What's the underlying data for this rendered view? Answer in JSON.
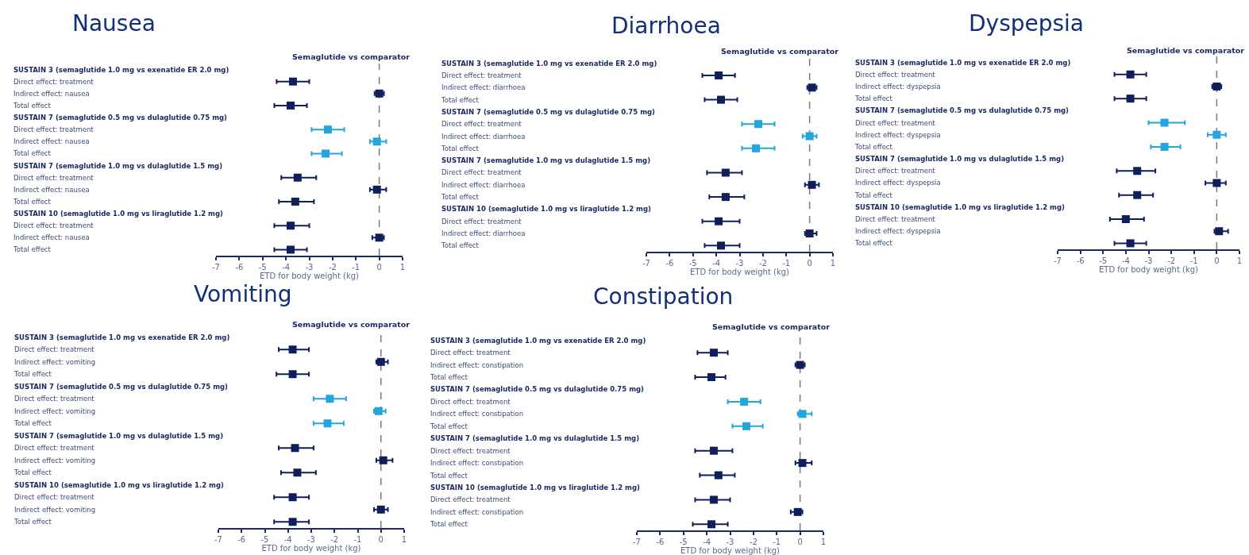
{
  "chart_data": [
    {
      "type": "scatter",
      "title": "Nausea",
      "annotations": [
        "Semaglutide vs comparator"
      ],
      "xlabel": "ETD for body weight (kg)",
      "orientation": "horizontal",
      "marker": "square",
      "categories": [
        "SUSTAIN 3 (semaglutide 1.0 mg vs exenatide ER 2.0 mg)",
        "Direct effect: treatment",
        "Indirect effect: nausea",
        "Total effect",
        "SUSTAIN 7 (semaglutide 0.5 mg vs dulaglutide 0.75 mg)",
        "Direct effect: treatment",
        "Indirect effect: nausea",
        "Total effect",
        "SUSTAIN 7 (semaglutide 1.0 mg vs dulaglutide 1.5 mg)",
        "Direct effect: treatment",
        "Indirect effect: nausea",
        "Total effect",
        "SUSTAIN 10 (semaglutide 1.0 mg vs liraglutide 1.2 mg)",
        "Direct effect: treatment",
        "Indirect effect: nausea",
        "Total effect"
      ],
      "series": [
        {
          "color": "#0e1f5c",
          "values": [
            null,
            -3.7,
            0.0,
            -3.8,
            null,
            null,
            null,
            null,
            null,
            -3.5,
            -0.1,
            -3.6,
            null,
            -3.8,
            0.0,
            -3.8
          ],
          "errors": [
            null,
            [
              -4.4,
              -3.0
            ],
            [
              -0.2,
              0.2
            ],
            [
              -4.5,
              -3.1
            ],
            null,
            null,
            null,
            null,
            null,
            [
              -4.2,
              -2.7
            ],
            [
              -0.4,
              0.3
            ],
            [
              -4.3,
              -2.8
            ],
            null,
            [
              -4.5,
              -3.0
            ],
            [
              -0.3,
              0.2
            ],
            [
              -4.5,
              -3.1
            ]
          ]
        },
        {
          "color": "#22a6dc",
          "values": [
            null,
            null,
            null,
            null,
            null,
            -2.2,
            -0.1,
            -2.3,
            null,
            null,
            null,
            null,
            null,
            null,
            null,
            null
          ],
          "errors": [
            null,
            null,
            null,
            null,
            null,
            [
              -2.9,
              -1.5
            ],
            [
              -0.4,
              0.3
            ],
            [
              -2.9,
              -1.6
            ],
            null,
            null,
            null,
            null,
            null,
            null,
            null,
            null
          ]
        }
      ],
      "xlim": [
        -7,
        1
      ],
      "xticks": [
        -7,
        -6,
        -5,
        -4,
        -3,
        -2,
        -1,
        0,
        1
      ],
      "ref_lines": [
        {
          "axis": "x",
          "value": 0,
          "line_style": "dashed",
          "color": "#7a7a7a"
        }
      ]
    },
    {
      "type": "scatter",
      "title": "Diarrhoea",
      "annotations": [
        "Semaglutide vs comparator"
      ],
      "xlabel": "ETD for body weight (kg)",
      "orientation": "horizontal",
      "marker": "square",
      "categories": [
        "SUSTAIN 3 (semaglutide 1.0 mg vs exenatide ER 2.0 mg)",
        "Direct effect: treatment",
        "Indirect effect: diarrhoea",
        "Total effect",
        "SUSTAIN 7 (semaglutide 0.5 mg vs dulaglutide 0.75 mg)",
        "Direct effect: treatment",
        "Indirect effect: diarrhoea",
        "Total effect",
        "SUSTAIN 7 (semaglutide 1.0 mg vs dulaglutide 1.5 mg)",
        "Direct effect: treatment",
        "Indirect effect: diarrhoea",
        "Total effect",
        "SUSTAIN 10 (semaglutide 1.0 mg vs liraglutide 1.2 mg)",
        "Direct effect: treatment",
        "Indirect effect: diarrhoea",
        "Total effect"
      ],
      "series": [
        {
          "color": "#0e1f5c",
          "values": [
            null,
            -3.9,
            0.1,
            -3.8,
            null,
            null,
            null,
            null,
            null,
            -3.6,
            0.1,
            -3.6,
            null,
            -3.9,
            0.0,
            -3.8
          ],
          "errors": [
            null,
            [
              -4.6,
              -3.2
            ],
            [
              -0.1,
              0.3
            ],
            [
              -4.5,
              -3.1
            ],
            null,
            null,
            null,
            null,
            null,
            [
              -4.4,
              -2.9
            ],
            [
              -0.2,
              0.4
            ],
            [
              -4.3,
              -2.8
            ],
            null,
            [
              -4.6,
              -3.0
            ],
            [
              -0.2,
              0.3
            ],
            [
              -4.5,
              -3.0
            ]
          ]
        },
        {
          "color": "#22a6dc",
          "values": [
            null,
            null,
            null,
            null,
            null,
            -2.2,
            0.0,
            -2.3,
            null,
            null,
            null,
            null,
            null,
            null,
            null,
            null
          ],
          "errors": [
            null,
            null,
            null,
            null,
            null,
            [
              -2.9,
              -1.5
            ],
            [
              -0.3,
              0.3
            ],
            [
              -2.9,
              -1.5
            ],
            null,
            null,
            null,
            null,
            null,
            null,
            null,
            null
          ]
        }
      ],
      "xlim": [
        -7,
        1
      ],
      "xticks": [
        -7,
        -6,
        -5,
        -4,
        -3,
        -2,
        -1,
        0,
        1
      ],
      "ref_lines": [
        {
          "axis": "x",
          "value": 0,
          "line_style": "dashed",
          "color": "#7a7a7a"
        }
      ]
    },
    {
      "type": "scatter",
      "title": "Dyspepsia",
      "annotations": [
        "Semaglutide vs comparator"
      ],
      "xlabel": "ETD for body weight (kg)",
      "orientation": "horizontal",
      "marker": "square",
      "categories": [
        "SUSTAIN 3 (semaglutide 1.0 mg vs exenatide ER 2.0 mg)",
        "Direct effect: treatment",
        "Indirect effect: dyspepsia",
        "Total effect",
        "SUSTAIN 7 (semaglutide 0.5 mg vs dulaglutide 0.75 mg)",
        "Direct effect: treatment",
        "Indirect effect: dyspepsia",
        "Total effect",
        "SUSTAIN 7 (semaglutide 1.0 mg vs dulaglutide 1.5 mg)",
        "Direct effect: treatment",
        "Indirect effect: dyspepsia",
        "Total effect",
        "SUSTAIN 10 (semaglutide 1.0 mg vs liraglutide 1.2 mg)",
        "Direct effect: treatment",
        "Indirect effect: dyspepsia",
        "Total effect"
      ],
      "series": [
        {
          "color": "#0e1f5c",
          "values": [
            null,
            -3.8,
            0.0,
            -3.8,
            null,
            null,
            null,
            null,
            null,
            -3.5,
            0.0,
            -3.5,
            null,
            -4.0,
            0.1,
            -3.8
          ],
          "errors": [
            null,
            [
              -4.5,
              -3.1
            ],
            [
              -0.2,
              0.2
            ],
            [
              -4.5,
              -3.1
            ],
            null,
            null,
            null,
            null,
            null,
            [
              -4.4,
              -2.7
            ],
            [
              -0.5,
              0.4
            ],
            [
              -4.3,
              -2.8
            ],
            null,
            [
              -4.7,
              -3.2
            ],
            [
              -0.1,
              0.5
            ],
            [
              -4.5,
              -3.1
            ]
          ]
        },
        {
          "color": "#22a6dc",
          "values": [
            null,
            null,
            null,
            null,
            null,
            -2.3,
            0.0,
            -2.3,
            null,
            null,
            null,
            null,
            null,
            null,
            null,
            null
          ],
          "errors": [
            null,
            null,
            null,
            null,
            null,
            [
              -3.0,
              -1.4
            ],
            [
              -0.4,
              0.4
            ],
            [
              -2.9,
              -1.6
            ],
            null,
            null,
            null,
            null,
            null,
            null,
            null,
            null
          ]
        }
      ],
      "xlim": [
        -7,
        1
      ],
      "xticks": [
        -7,
        -6,
        -5,
        -4,
        -3,
        -2,
        -1,
        0,
        1
      ],
      "ref_lines": [
        {
          "axis": "x",
          "value": 0,
          "line_style": "dashed",
          "color": "#7a7a7a"
        }
      ]
    },
    {
      "type": "scatter",
      "title": "Vomiting",
      "annotations": [
        "Semaglutide vs comparator"
      ],
      "xlabel": "ETD for body weight (kg)",
      "orientation": "horizontal",
      "marker": "square",
      "categories": [
        "SUSTAIN 3 (semaglutide 1.0 mg vs exenatide ER 2.0 mg)",
        "Direct effect: treatment",
        "Indirect effect: vomiting",
        "Total effect",
        "SUSTAIN 7 (semaglutide 0.5 mg vs dulaglutide 0.75 mg)",
        "Direct effect: treatment",
        "Indirect effect: vomiting",
        "Total effect",
        "SUSTAIN 7 (semaglutide 1.0 mg vs dulaglutide 1.5 mg)",
        "Direct effect: treatment",
        "Indirect effect: vomiting",
        "Total effect",
        "SUSTAIN 10 (semaglutide 1.0 mg vs liraglutide 1.2 mg)",
        "Direct effect: treatment",
        "Indirect effect: vomiting",
        "Total effect"
      ],
      "series": [
        {
          "color": "#0e1f5c",
          "values": [
            null,
            -3.8,
            0.0,
            -3.8,
            null,
            null,
            null,
            null,
            null,
            -3.7,
            0.1,
            -3.6,
            null,
            -3.8,
            0.0,
            -3.8
          ],
          "errors": [
            null,
            [
              -4.4,
              -3.1
            ],
            [
              -0.2,
              0.3
            ],
            [
              -4.5,
              -3.1
            ],
            null,
            null,
            null,
            null,
            null,
            [
              -4.4,
              -2.9
            ],
            [
              -0.2,
              0.5
            ],
            [
              -4.3,
              -2.8
            ],
            null,
            [
              -4.6,
              -3.1
            ],
            [
              -0.3,
              0.3
            ],
            [
              -4.6,
              -3.1
            ]
          ]
        },
        {
          "color": "#22a6dc",
          "values": [
            null,
            null,
            null,
            null,
            null,
            -2.2,
            -0.1,
            -2.3,
            null,
            null,
            null,
            null,
            null,
            null,
            null,
            null
          ],
          "errors": [
            null,
            null,
            null,
            null,
            null,
            [
              -2.9,
              -1.5
            ],
            [
              -0.3,
              0.2
            ],
            [
              -2.9,
              -1.6
            ],
            null,
            null,
            null,
            null,
            null,
            null,
            null,
            null
          ]
        }
      ],
      "xlim": [
        -7,
        1
      ],
      "xticks": [
        -7,
        -6,
        -5,
        -4,
        -3,
        -2,
        -1,
        0,
        1
      ],
      "ref_lines": [
        {
          "axis": "x",
          "value": 0,
          "line_style": "dashed",
          "color": "#7a7a7a"
        }
      ]
    },
    {
      "type": "scatter",
      "title": "Constipation",
      "annotations": [
        "Semaglutide vs comparator"
      ],
      "xlabel": "ETD for body weight (kg)",
      "orientation": "horizontal",
      "marker": "square",
      "categories": [
        "SUSTAIN 3 (semaglutide 1.0 mg vs exenatide ER 2.0 mg)",
        "Direct effect: treatment",
        "Indirect effect: constipation",
        "Total effect",
        "SUSTAIN 7 (semaglutide 0.5 mg vs dulaglutide 0.75 mg)",
        "Direct effect: treatment",
        "Indirect effect: constipation",
        "Total effect",
        "SUSTAIN 7 (semaglutide 1.0 mg vs dulaglutide 1.5 mg)",
        "Direct effect: treatment",
        "Indirect effect: constipation",
        "Total effect",
        "SUSTAIN 10 (semaglutide 1.0 mg vs liraglutide 1.2 mg)",
        "Direct effect: treatment",
        "Indirect effect: constipation",
        "Total effect"
      ],
      "series": [
        {
          "color": "#0e1f5c",
          "values": [
            null,
            -3.7,
            0.0,
            -3.8,
            null,
            null,
            null,
            null,
            null,
            -3.7,
            0.1,
            -3.5,
            null,
            -3.7,
            -0.1,
            -3.8
          ],
          "errors": [
            null,
            [
              -4.4,
              -3.1
            ],
            [
              -0.2,
              0.2
            ],
            [
              -4.5,
              -3.2
            ],
            null,
            null,
            null,
            null,
            null,
            [
              -4.5,
              -2.9
            ],
            [
              -0.2,
              0.5
            ],
            [
              -4.3,
              -2.8
            ],
            null,
            [
              -4.5,
              -3.0
            ],
            [
              -0.4,
              0.1
            ],
            [
              -4.6,
              -3.1
            ]
          ]
        },
        {
          "color": "#22a6dc",
          "values": [
            null,
            null,
            null,
            null,
            null,
            -2.4,
            0.1,
            -2.3,
            null,
            null,
            null,
            null,
            null,
            null,
            null,
            null
          ],
          "errors": [
            null,
            null,
            null,
            null,
            null,
            [
              -3.1,
              -1.7
            ],
            [
              -0.1,
              0.5
            ],
            [
              -2.9,
              -1.6
            ],
            null,
            null,
            null,
            null,
            null,
            null,
            null,
            null
          ]
        }
      ],
      "xlim": [
        -7,
        1
      ],
      "xticks": [
        -7,
        -6,
        -5,
        -4,
        -3,
        -2,
        -1,
        0,
        1
      ],
      "ref_lines": [
        {
          "axis": "x",
          "value": 0,
          "line_style": "dashed",
          "color": "#7a7a7a"
        }
      ]
    }
  ]
}
